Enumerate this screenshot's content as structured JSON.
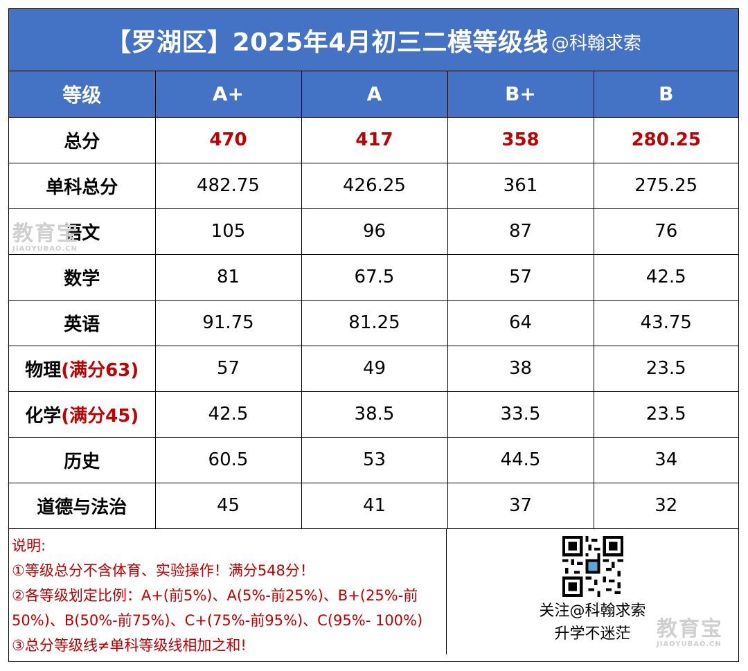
{
  "title": {
    "main": "【罗湖区】2025年4月初三二模等级线",
    "handle": "@科翰求索"
  },
  "header": [
    "等级",
    "A+",
    "A",
    "B+",
    "B"
  ],
  "rows": [
    {
      "subject": "总分",
      "note": "",
      "values": [
        "470",
        "417",
        "358",
        "280.25"
      ]
    },
    {
      "subject": "单科总分",
      "note": "",
      "values": [
        "482.75",
        "426.25",
        "361",
        "275.25"
      ]
    },
    {
      "subject": "语文",
      "note": "",
      "values": [
        "105",
        "96",
        "87",
        "76"
      ]
    },
    {
      "subject": "数学",
      "note": "",
      "values": [
        "81",
        "67.5",
        "57",
        "42.5"
      ]
    },
    {
      "subject": "英语",
      "note": "",
      "values": [
        "91.75",
        "81.25",
        "64",
        "43.75"
      ]
    },
    {
      "subject": "物理",
      "note": "(满分63)",
      "values": [
        "57",
        "49",
        "38",
        "23.5"
      ]
    },
    {
      "subject": "化学",
      "note": "(满分45)",
      "values": [
        "42.5",
        "38.5",
        "33.5",
        "23.5"
      ]
    },
    {
      "subject": "历史",
      "note": "",
      "values": [
        "60.5",
        "53",
        "44.5",
        "34"
      ]
    },
    {
      "subject": "道德与法治",
      "note": "",
      "values": [
        "45",
        "41",
        "37",
        "32"
      ]
    }
  ],
  "notes": [
    "说明:",
    "①等级总分不含体育、实验操作！满分548分！",
    "②各等级划定比例：A+(前5%)、A(5%-前25%)、B+(25%-前",
    "50%)、B(50%-前75%)、C+(75%-前95%)、C(95%- 100%)",
    "③总分等级线≠单科等级线相加之和!"
  ],
  "qr_caption": [
    "关注@科翰求索",
    "升学不迷茫"
  ],
  "watermark": {
    "text": "教育宝",
    "sub": "JIAOYUBAO.CN"
  },
  "colors": {
    "header_bg": "#4472C4",
    "accent_red": "#C00000"
  }
}
